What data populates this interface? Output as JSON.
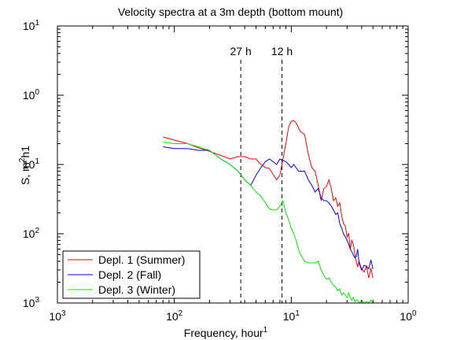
{
  "chart_data": {
    "type": "line",
    "title": "Velocity spectra at a 3m depth (bottom mount)",
    "xlabel": {
      "main": "Frequency, hour",
      "sup": "1"
    },
    "ylabel": {
      "main": "S, m",
      "sup": "2",
      "tail": "h1"
    },
    "xscale": "log",
    "yscale": "log",
    "xlim": [
      0.001,
      1
    ],
    "ylim": [
      0.001,
      10
    ],
    "x_ticks": [
      {
        "value": 0.001,
        "base": "10",
        "exp": "3"
      },
      {
        "value": 0.01,
        "base": "10",
        "exp": "2"
      },
      {
        "value": 0.1,
        "base": "10",
        "exp": "1"
      },
      {
        "value": 1,
        "base": "10",
        "exp": "0"
      }
    ],
    "y_ticks": [
      {
        "value": 0.001,
        "base": "10",
        "exp": "3"
      },
      {
        "value": 0.01,
        "base": "10",
        "exp": "2"
      },
      {
        "value": 0.1,
        "base": "10",
        "exp": "1"
      },
      {
        "value": 1,
        "base": "10",
        "exp": "0"
      },
      {
        "value": 10,
        "base": "10",
        "exp": "1"
      }
    ],
    "grid": false,
    "legend_position": "bottom-left",
    "annotations": [
      {
        "label": "27 h",
        "x": 0.037
      },
      {
        "label": "12 h",
        "x": 0.0833
      }
    ],
    "series": [
      {
        "name": "Depl. 1 (Summer)",
        "color": "#ff0000",
        "x": [
          0.008,
          0.01,
          0.013,
          0.016,
          0.02,
          0.025,
          0.03,
          0.035,
          0.04,
          0.045,
          0.05,
          0.055,
          0.06,
          0.065,
          0.07,
          0.075,
          0.08,
          0.085,
          0.09,
          0.095,
          0.1,
          0.105,
          0.11,
          0.115,
          0.12,
          0.13,
          0.14,
          0.15,
          0.16,
          0.17,
          0.18,
          0.19,
          0.2,
          0.21,
          0.22,
          0.23,
          0.24,
          0.25,
          0.26,
          0.27,
          0.28,
          0.29,
          0.3,
          0.31,
          0.32,
          0.33,
          0.34,
          0.35,
          0.36,
          0.37,
          0.38,
          0.4,
          0.42,
          0.44,
          0.46,
          0.48,
          0.5
        ],
        "y": [
          0.25,
          0.225,
          0.2,
          0.175,
          0.155,
          0.135,
          0.12,
          0.13,
          0.13,
          0.12,
          0.12,
          0.1,
          0.09,
          0.088,
          0.072,
          0.06,
          0.07,
          0.12,
          0.2,
          0.35,
          0.42,
          0.43,
          0.4,
          0.34,
          0.3,
          0.27,
          0.14,
          0.09,
          0.08,
          0.05,
          0.03,
          0.045,
          0.048,
          0.06,
          0.045,
          0.03,
          0.033,
          0.025,
          0.028,
          0.018,
          0.014,
          0.013,
          0.009,
          0.01,
          0.006,
          0.008,
          0.007,
          0.005,
          0.004,
          0.0033,
          0.004,
          0.0031,
          0.0028,
          0.0034,
          0.0023,
          0.0032,
          0.0023
        ]
      },
      {
        "name": "Depl. 2 (Fall)",
        "color": "#0000ff",
        "x": [
          0.008,
          0.01,
          0.013,
          0.016,
          0.02,
          0.025,
          0.03,
          0.035,
          0.04,
          0.045,
          0.05,
          0.055,
          0.06,
          0.065,
          0.07,
          0.075,
          0.08,
          0.085,
          0.09,
          0.095,
          0.1,
          0.105,
          0.11,
          0.115,
          0.12,
          0.13,
          0.14,
          0.15,
          0.16,
          0.17,
          0.18,
          0.19,
          0.2,
          0.21,
          0.22,
          0.23,
          0.24,
          0.25,
          0.26,
          0.27,
          0.28,
          0.29,
          0.3,
          0.31,
          0.32,
          0.33,
          0.34,
          0.35,
          0.36,
          0.37,
          0.38,
          0.4,
          0.42,
          0.44,
          0.46,
          0.48,
          0.5
        ],
        "y": [
          0.18,
          0.17,
          0.17,
          0.16,
          0.16,
          0.12,
          0.1,
          0.08,
          0.06,
          0.05,
          0.07,
          0.09,
          0.11,
          0.12,
          0.11,
          0.1,
          0.12,
          0.115,
          0.11,
          0.1,
          0.09,
          0.1,
          0.09,
          0.08,
          0.08,
          0.08,
          0.06,
          0.05,
          0.04,
          0.045,
          0.033,
          0.03,
          0.03,
          0.028,
          0.025,
          0.022,
          0.019,
          0.02,
          0.014,
          0.012,
          0.01,
          0.009,
          0.008,
          0.007,
          0.006,
          0.0055,
          0.0049,
          0.0045,
          0.0047,
          0.006,
          0.0038,
          0.003,
          0.0035,
          0.0034,
          0.0031,
          0.0042,
          0.0031
        ]
      },
      {
        "name": "Depl. 3 (Winter)",
        "color": "#00ee00",
        "x": [
          0.008,
          0.01,
          0.013,
          0.016,
          0.02,
          0.025,
          0.03,
          0.035,
          0.04,
          0.045,
          0.05,
          0.055,
          0.06,
          0.065,
          0.07,
          0.075,
          0.08,
          0.085,
          0.09,
          0.095,
          0.1,
          0.105,
          0.11,
          0.115,
          0.12,
          0.13,
          0.14,
          0.15,
          0.16,
          0.17,
          0.18,
          0.19,
          0.2,
          0.21,
          0.22,
          0.23,
          0.24,
          0.25,
          0.26,
          0.27,
          0.28,
          0.29,
          0.3,
          0.31,
          0.32,
          0.33,
          0.34,
          0.35,
          0.36,
          0.37,
          0.38,
          0.4,
          0.42,
          0.44,
          0.46,
          0.48,
          0.5
        ],
        "y": [
          0.21,
          0.2,
          0.2,
          0.18,
          0.16,
          0.12,
          0.1,
          0.08,
          0.06,
          0.05,
          0.04,
          0.035,
          0.028,
          0.023,
          0.022,
          0.022,
          0.025,
          0.03,
          0.02,
          0.016,
          0.012,
          0.01,
          0.008,
          0.006,
          0.005,
          0.004,
          0.0038,
          0.0038,
          0.0038,
          0.004,
          0.003,
          0.0025,
          0.0022,
          0.0023,
          0.002,
          0.0018,
          0.0017,
          0.0015,
          0.0016,
          0.0013,
          0.0014,
          0.0013,
          0.0012,
          0.0014,
          0.0012,
          0.0011,
          0.0012,
          0.00105,
          0.0011,
          0.0011,
          0.001,
          0.0011,
          0.001,
          0.00105,
          0.001,
          0.0011,
          0.001
        ]
      }
    ]
  }
}
